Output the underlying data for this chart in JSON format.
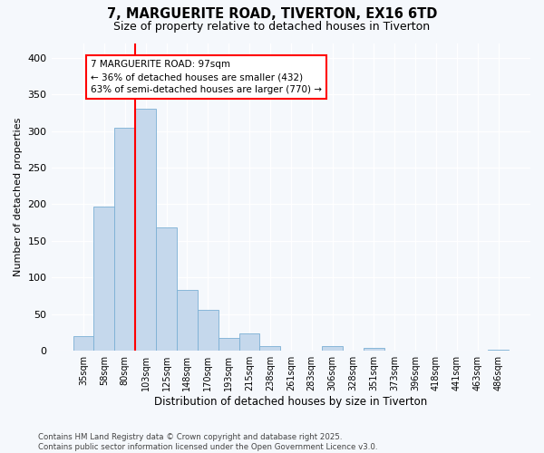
{
  "title": "7, MARGUERITE ROAD, TIVERTON, EX16 6TD",
  "subtitle": "Size of property relative to detached houses in Tiverton",
  "xlabel": "Distribution of detached houses by size in Tiverton",
  "ylabel": "Number of detached properties",
  "bar_color": "#c5d8ec",
  "bar_edge_color": "#7bafd4",
  "background_color": "#f5f8fc",
  "grid_color": "#d0dce8",
  "categories": [
    "35sqm",
    "58sqm",
    "80sqm",
    "103sqm",
    "125sqm",
    "148sqm",
    "170sqm",
    "193sqm",
    "215sqm",
    "238sqm",
    "261sqm",
    "283sqm",
    "306sqm",
    "328sqm",
    "351sqm",
    "373sqm",
    "396sqm",
    "418sqm",
    "441sqm",
    "463sqm",
    "486sqm"
  ],
  "values": [
    20,
    197,
    305,
    330,
    168,
    83,
    56,
    18,
    24,
    6,
    0,
    0,
    6,
    0,
    4,
    0,
    0,
    0,
    0,
    0,
    2
  ],
  "ylim": [
    0,
    420
  ],
  "yticks": [
    0,
    50,
    100,
    150,
    200,
    250,
    300,
    350,
    400
  ],
  "red_line_x": 2.5,
  "annotation_text": "7 MARGUERITE ROAD: 97sqm\n← 36% of detached houses are smaller (432)\n63% of semi-detached houses are larger (770) →",
  "footnote": "Contains HM Land Registry data © Crown copyright and database right 2025.\nContains public sector information licensed under the Open Government Licence v3.0."
}
